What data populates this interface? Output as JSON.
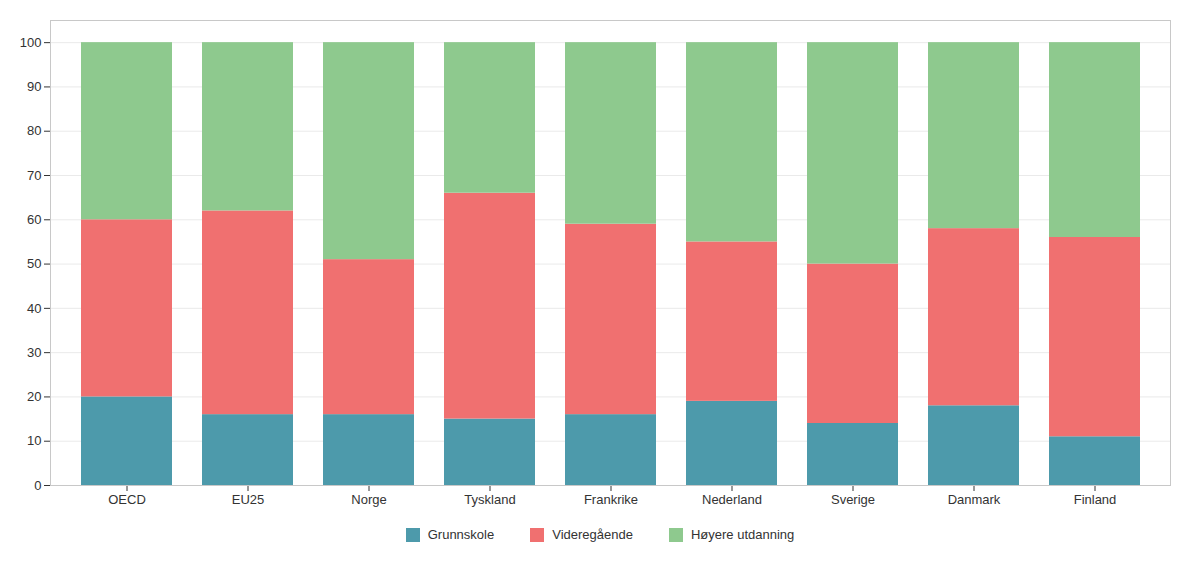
{
  "chart_data": {
    "type": "bar",
    "stacked": true,
    "categories": [
      "OECD",
      "EU25",
      "Norge",
      "Tyskland",
      "Frankrike",
      "Nederland",
      "Sverige",
      "Danmark",
      "Finland"
    ],
    "series": [
      {
        "name": "Grunnskole",
        "color": "#4d9aab",
        "values": [
          20,
          16,
          16,
          15,
          16,
          19,
          14,
          18,
          11
        ]
      },
      {
        "name": "Videregående",
        "color": "#f07070",
        "values": [
          40,
          46,
          35,
          51,
          43,
          36,
          36,
          40,
          45
        ]
      },
      {
        "name": "Høyere utdanning",
        "color": "#8ec98e",
        "values": [
          40,
          38,
          49,
          34,
          41,
          45,
          50,
          42,
          44
        ]
      }
    ],
    "ylim": [
      0,
      105
    ],
    "yticks": [
      0,
      10,
      20,
      30,
      40,
      50,
      60,
      70,
      80,
      90,
      100
    ],
    "grid": true,
    "legend": "bottom"
  }
}
